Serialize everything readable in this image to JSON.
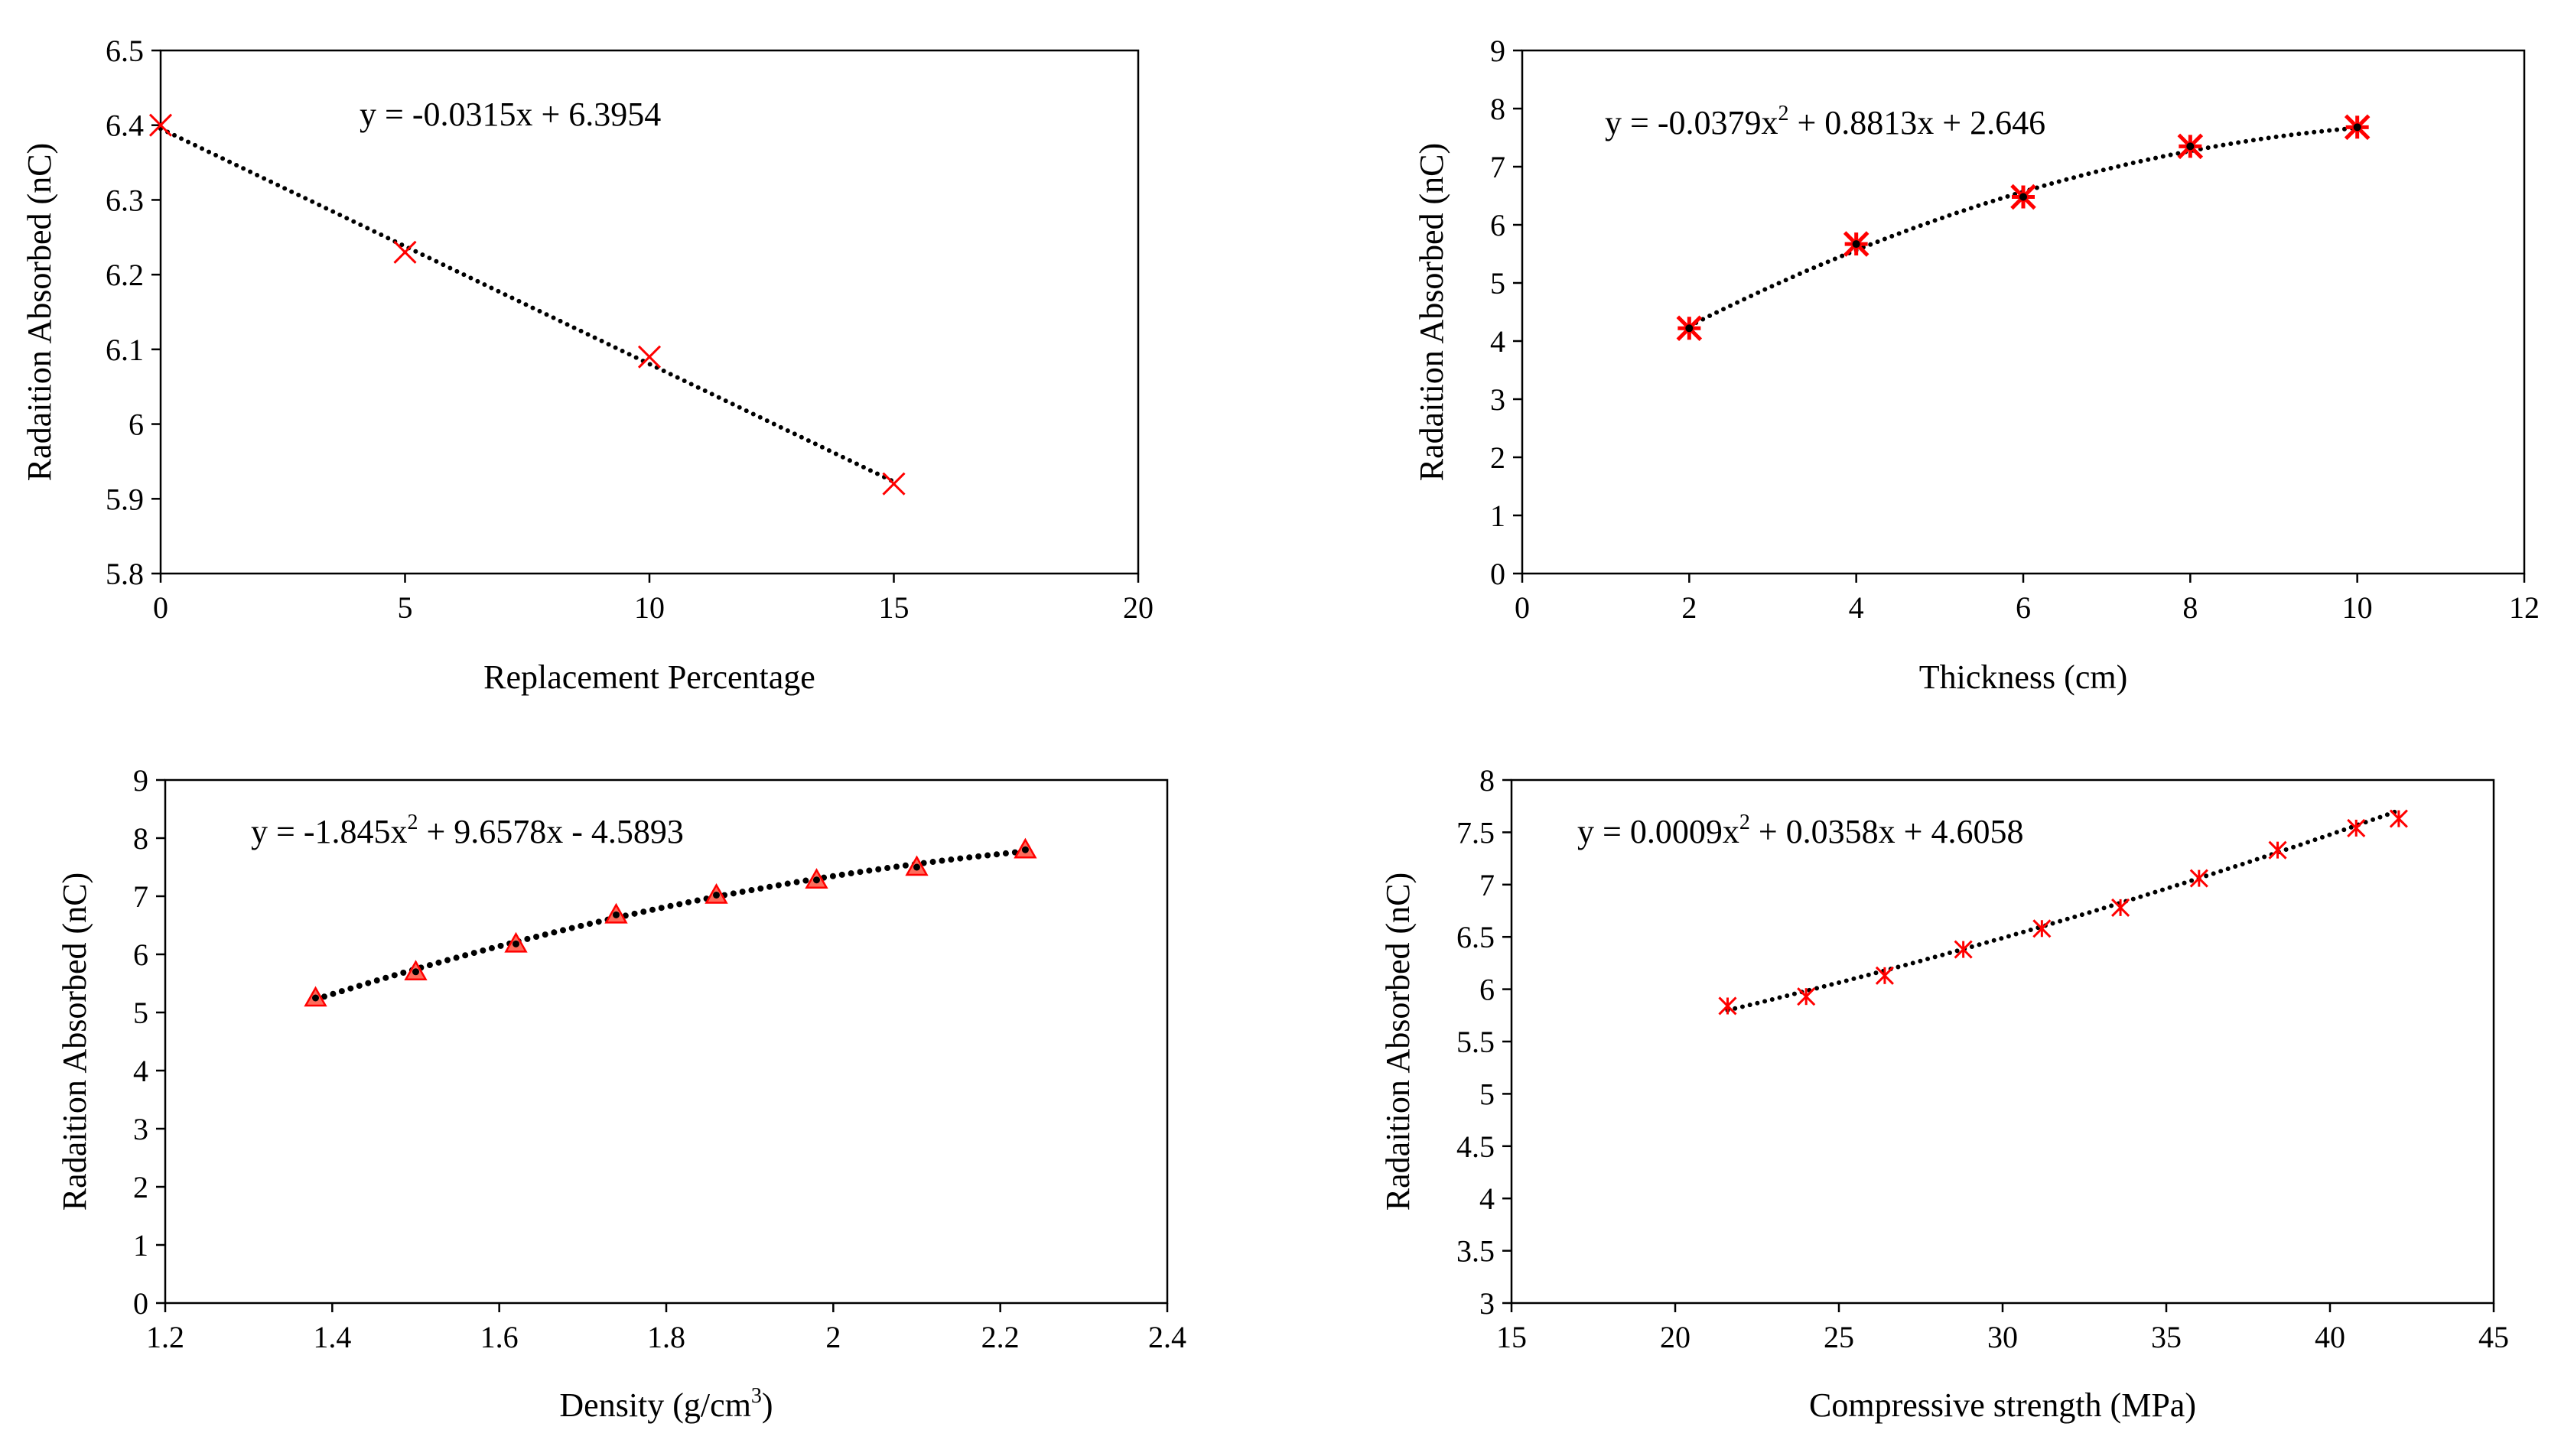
{
  "colors": {
    "marker": "#ff0000",
    "axis": "#000000",
    "trend": "#000000",
    "marker_fill": "#ff6b5b"
  },
  "chart_data": [
    {
      "type": "scatter",
      "panel": "top-left",
      "title": "",
      "xlabel": "Replacement Percentage",
      "ylabel": "Radaition Absorbed (nC)",
      "xlim": [
        0,
        20
      ],
      "ylim": [
        5.8,
        6.5
      ],
      "xticks": [
        0,
        5,
        10,
        15,
        20
      ],
      "yticks": [
        5.8,
        5.9,
        6.0,
        6.1,
        6.2,
        6.3,
        6.4,
        6.5
      ],
      "xtick_labels": [
        "0",
        "5",
        "10",
        "15",
        "20"
      ],
      "ytick_labels": [
        "5.8",
        "5.9",
        "6",
        "6.1",
        "6.2",
        "6.3",
        "6.4",
        "6.5"
      ],
      "marker": "x",
      "x": [
        0,
        5,
        10,
        15
      ],
      "y": [
        6.4,
        6.23,
        6.09,
        5.92
      ],
      "trendline": {
        "kind": "linear",
        "coefficients": [
          -0.0315,
          6.3954
        ],
        "x_range": [
          0,
          15
        ]
      },
      "equation_parts": [
        "y = -0.0315x + 6.3954"
      ]
    },
    {
      "type": "scatter",
      "panel": "top-right",
      "title": "",
      "xlabel": "Thickness (cm)",
      "ylabel": "Radaition Absorbed (nC)",
      "xlim": [
        0,
        12
      ],
      "ylim": [
        0,
        9
      ],
      "xticks": [
        0,
        2,
        4,
        6,
        8,
        10,
        12
      ],
      "yticks": [
        0,
        1,
        2,
        3,
        4,
        5,
        6,
        7,
        8,
        9
      ],
      "xtick_labels": [
        "0",
        "2",
        "4",
        "6",
        "8",
        "10",
        "12"
      ],
      "ytick_labels": [
        "0",
        "1",
        "2",
        "3",
        "4",
        "5",
        "6",
        "7",
        "8",
        "9"
      ],
      "marker": "asterisk-filled",
      "x": [
        2,
        4,
        6,
        8,
        10
      ],
      "y": [
        4.22,
        5.67,
        6.48,
        7.35,
        7.68
      ],
      "trendline": {
        "kind": "quadratic",
        "coefficients": [
          -0.0379,
          0.8813,
          2.646
        ],
        "x_range": [
          2,
          10
        ]
      },
      "equation_parts": [
        "y = -0.0379x",
        "2",
        " + 0.8813x + 2.646"
      ]
    },
    {
      "type": "scatter",
      "panel": "bottom-left",
      "title": "",
      "xlabel_parts": [
        "Density (g/cm",
        "3",
        ")"
      ],
      "ylabel": "Radaition Absorbed (nC)",
      "xlim": [
        1.2,
        2.4
      ],
      "ylim": [
        0,
        9
      ],
      "xticks": [
        1.2,
        1.4,
        1.6,
        1.8,
        2.0,
        2.2,
        2.4
      ],
      "yticks": [
        0,
        1,
        2,
        3,
        4,
        5,
        6,
        7,
        8,
        9
      ],
      "xtick_labels": [
        "1.2",
        "1.4",
        "1.6",
        "1.8",
        "2",
        "2.2",
        "2.4"
      ],
      "ytick_labels": [
        "0",
        "1",
        "2",
        "3",
        "4",
        "5",
        "6",
        "7",
        "8",
        "9"
      ],
      "marker": "triangle",
      "x": [
        1.38,
        1.5,
        1.62,
        1.74,
        1.86,
        1.98,
        2.1,
        2.23
      ],
      "y": [
        5.25,
        5.7,
        6.18,
        6.68,
        7.02,
        7.28,
        7.5,
        7.8
      ],
      "trendline": {
        "kind": "quadratic",
        "coefficients": [
          -1.845,
          9.6578,
          -4.5893
        ],
        "x_range": [
          1.38,
          2.23
        ]
      },
      "equation_parts": [
        "y = -1.845x",
        "2",
        " + 9.6578x - 4.5893"
      ]
    },
    {
      "type": "scatter",
      "panel": "bottom-right",
      "title": "",
      "xlabel": "Compressive strength (MPa)",
      "ylabel": "Radaition Absorbed (nC)",
      "xlim": [
        15,
        45
      ],
      "ylim": [
        3,
        8
      ],
      "xticks": [
        15,
        20,
        25,
        30,
        35,
        40,
        45
      ],
      "yticks": [
        3,
        3.5,
        4,
        4.5,
        5,
        5.5,
        6,
        6.5,
        7,
        7.5,
        8
      ],
      "xtick_labels": [
        "15",
        "20",
        "25",
        "30",
        "35",
        "40",
        "45"
      ],
      "ytick_labels": [
        "3",
        "3.5",
        "4",
        "4.5",
        "5",
        "5.5",
        "6",
        "6.5",
        "7",
        "7.5",
        "8"
      ],
      "marker": "asterisk",
      "x": [
        21.6,
        24.0,
        26.4,
        28.8,
        31.2,
        33.6,
        36.0,
        38.4,
        40.8,
        42.1
      ],
      "y": [
        5.84,
        5.93,
        6.13,
        6.38,
        6.58,
        6.78,
        7.06,
        7.33,
        7.54,
        7.63
      ],
      "trendline": {
        "kind": "quadratic",
        "coefficients": [
          0.0009,
          0.0358,
          4.6058
        ],
        "x_range": [
          21.6,
          42.1
        ]
      },
      "equation_parts": [
        "y = 0.0009x",
        "2",
        " + 0.0358x + 4.6058"
      ]
    }
  ]
}
